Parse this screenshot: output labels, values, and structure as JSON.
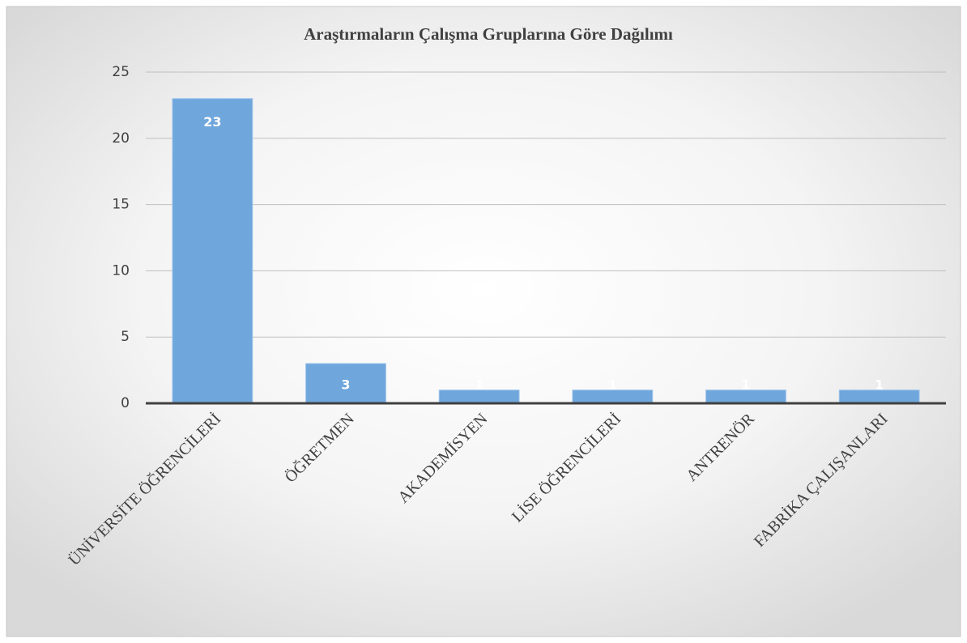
{
  "chart_data": {
    "type": "bar",
    "title": "Araştırmaların Çalışma Gruplarına Göre Dağılımı",
    "categories": [
      "ÜNİVERSİTE ÖĞRENCİLERİ",
      "ÖĞRETMEN",
      "AKADEMİSYEN",
      "LİSE ÖĞRENCİLERİ",
      "ANTRENÖR",
      "FABRİKA ÇALIŞANLARI"
    ],
    "values": [
      23,
      3,
      1,
      1,
      1,
      1
    ],
    "color": "#6fa6dc",
    "ylim": [
      0,
      25
    ],
    "yticks": [
      0,
      5,
      10,
      15,
      20,
      25
    ],
    "grid": true,
    "data_labels": true
  }
}
